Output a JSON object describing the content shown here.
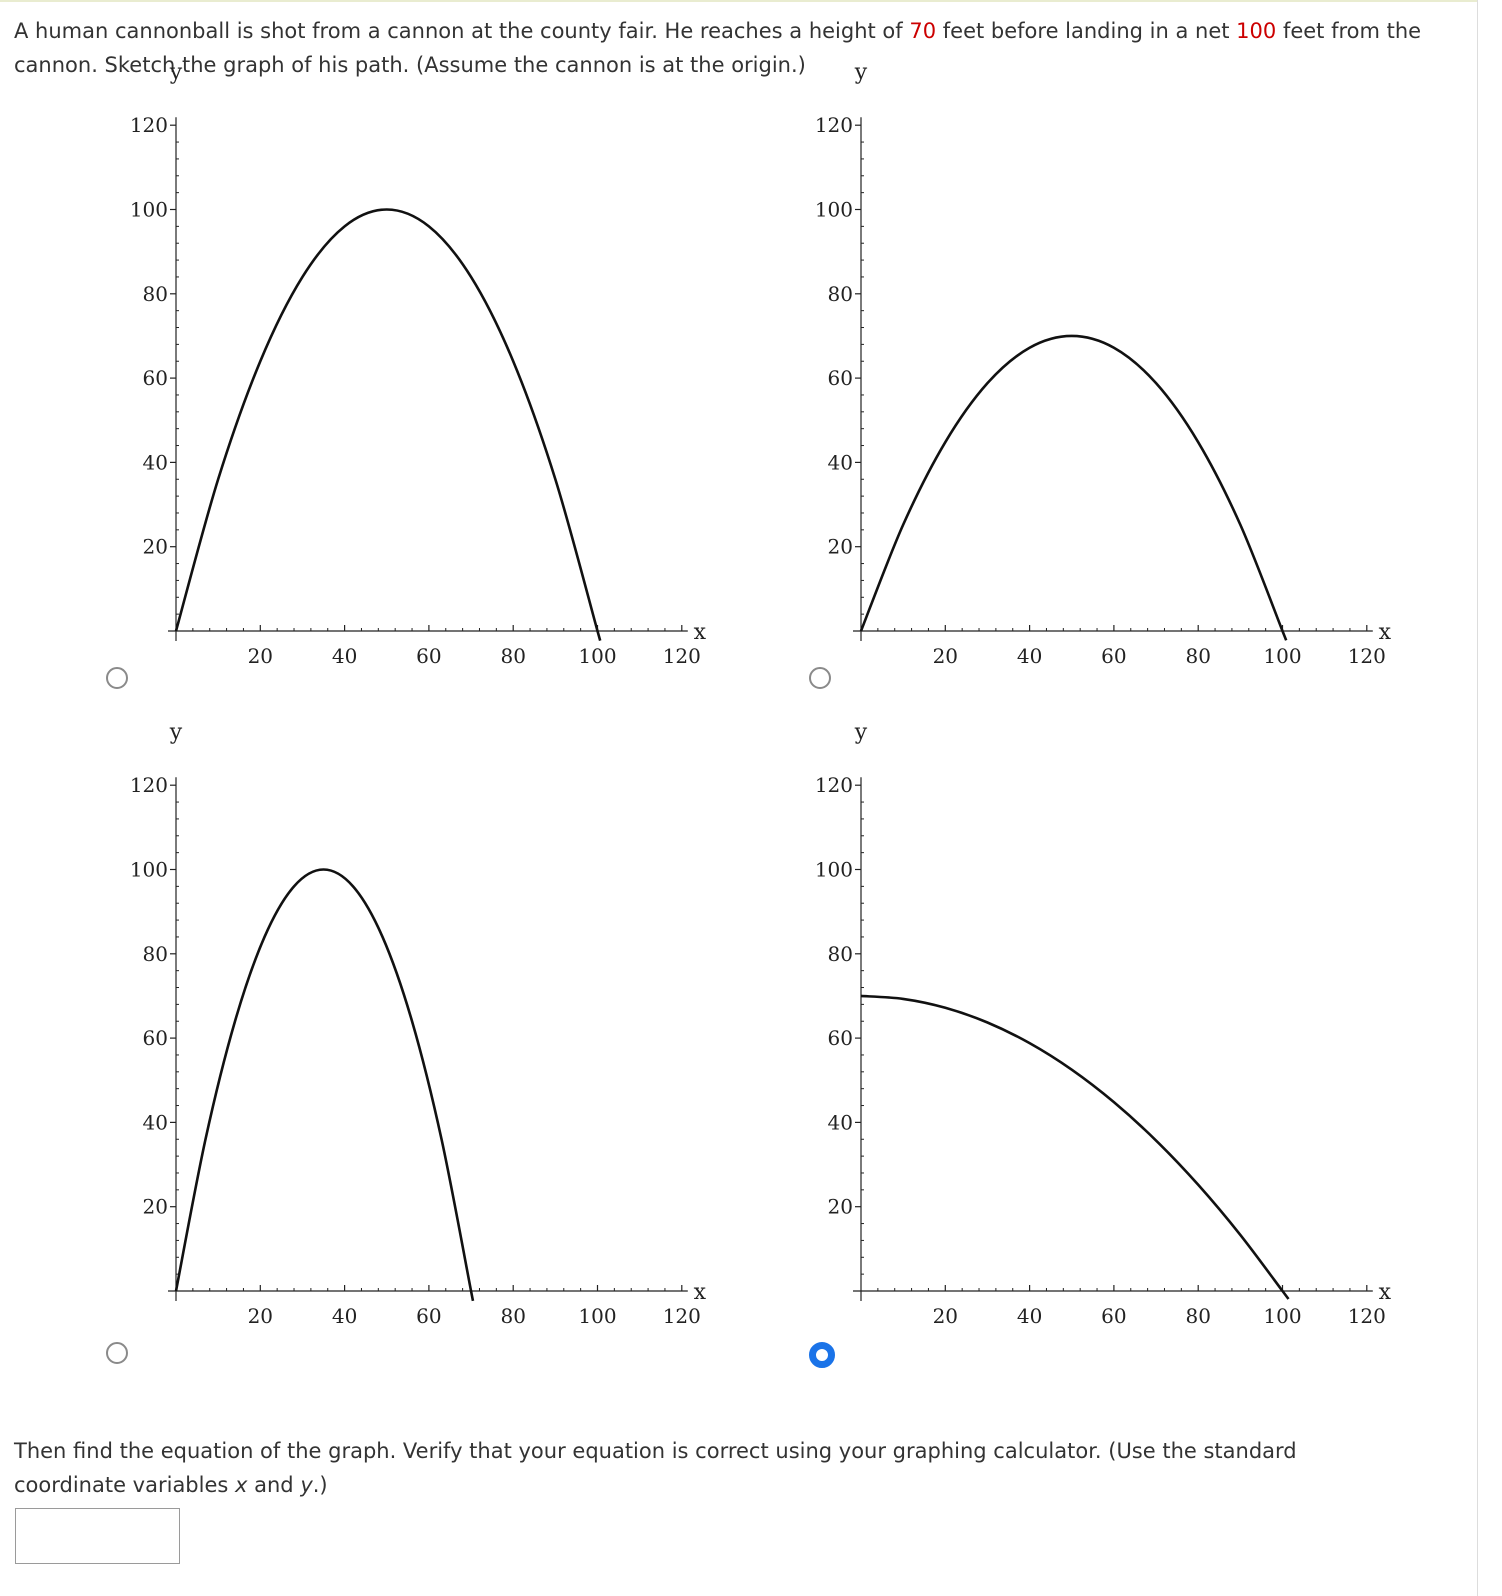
{
  "question": {
    "part1": "A human cannonball is shot from a cannon at the county fair. He reaches a height of ",
    "height_value": "70",
    "part2": " feet before landing in a net ",
    "distance_value": "100",
    "part3": " feet from the cannon. Sketch the graph of his path. (Assume the cannon is at the origin.)"
  },
  "choices": [
    {
      "selected": false
    },
    {
      "selected": false
    },
    {
      "selected": false
    },
    {
      "selected": true
    }
  ],
  "chart_data": [
    {
      "type": "line",
      "xlabel": "x",
      "ylabel": "y",
      "xlim": [
        0,
        120
      ],
      "ylim": [
        0,
        120
      ],
      "x_ticks": [
        20,
        40,
        60,
        80,
        100,
        120
      ],
      "y_ticks": [
        20,
        40,
        60,
        80,
        100,
        120
      ],
      "series": [
        {
          "x": [
            0,
            10,
            20,
            30,
            40,
            50,
            60,
            70,
            80,
            90,
            100
          ],
          "y": [
            0,
            36,
            64,
            84,
            96,
            100,
            96,
            84,
            64,
            36,
            0
          ]
        }
      ]
    },
    {
      "type": "line",
      "xlabel": "x",
      "ylabel": "y",
      "xlim": [
        0,
        120
      ],
      "ylim": [
        0,
        120
      ],
      "x_ticks": [
        20,
        40,
        60,
        80,
        100,
        120
      ],
      "y_ticks": [
        20,
        40,
        60,
        80,
        100,
        120
      ],
      "series": [
        {
          "x": [
            0,
            10,
            20,
            30,
            40,
            50,
            60,
            70,
            80,
            90,
            100
          ],
          "y": [
            0,
            25.2,
            44.8,
            58.8,
            67.2,
            70,
            67.2,
            58.8,
            44.8,
            25.2,
            0
          ]
        }
      ]
    },
    {
      "type": "line",
      "xlabel": "x",
      "ylabel": "y",
      "xlim": [
        0,
        120
      ],
      "ylim": [
        0,
        120
      ],
      "x_ticks": [
        20,
        40,
        60,
        80,
        100,
        120
      ],
      "y_ticks": [
        20,
        40,
        60,
        80,
        100,
        120
      ],
      "series": [
        {
          "x": [
            0,
            7,
            14,
            21,
            28,
            35,
            42,
            49,
            56,
            63,
            70
          ],
          "y": [
            0,
            36,
            64,
            84,
            96,
            100,
            96,
            84,
            64,
            36,
            0
          ]
        }
      ]
    },
    {
      "type": "line",
      "xlabel": "x",
      "ylabel": "y",
      "xlim": [
        0,
        120
      ],
      "ylim": [
        0,
        120
      ],
      "x_ticks": [
        20,
        40,
        60,
        80,
        100,
        120
      ],
      "y_ticks": [
        20,
        40,
        60,
        80,
        100,
        120
      ],
      "series": [
        {
          "x": [
            0,
            10,
            20,
            30,
            40,
            50,
            60,
            70,
            80,
            90,
            100
          ],
          "y": [
            70,
            69.3,
            67.2,
            63.7,
            58.8,
            52.5,
            44.8,
            35.7,
            25.2,
            13.3,
            0
          ]
        }
      ]
    }
  ],
  "followup": {
    "part1": "Then find the equation of the graph. Verify that your equation is correct using your graphing calculator. (Use the standard coordinate variables ",
    "var_x": "x",
    "part2": " and ",
    "var_y": "y",
    "part3": ".)"
  },
  "answer_input": {
    "value": ""
  }
}
